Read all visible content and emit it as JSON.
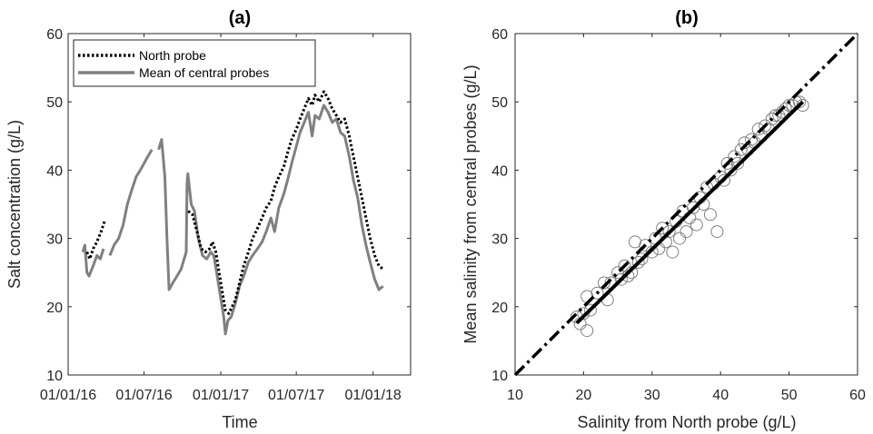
{
  "colors": {
    "north": "#000000",
    "central": "#808080",
    "scatter": "#808080",
    "fit": "#000000",
    "identity": "#000000"
  },
  "chart_data": [
    {
      "type": "line",
      "title": "(a)",
      "xlabel": "Time",
      "ylabel": "Salt concentration (g/L)",
      "ylim": [
        10,
        60
      ],
      "yticks": [
        10,
        20,
        30,
        40,
        50,
        60
      ],
      "xlim": [
        "2016-01-01",
        "2018-04-01"
      ],
      "xtick_labels": [
        "01/01/16",
        "01/07/16",
        "01/01/17",
        "01/07/17",
        "01/01/18"
      ],
      "legend": {
        "position": "top-left",
        "entries": [
          "North probe",
          "Mean of central probes"
        ]
      },
      "series": [
        {
          "name": "North probe",
          "style": "dotted",
          "segments": [
            [
              [
                "2016-02-15",
                28.0
              ],
              [
                "2016-02-22",
                27.0
              ],
              [
                "2016-03-01",
                28.5
              ],
              [
                "2016-03-10",
                29.5
              ],
              [
                "2016-03-20",
                31.0
              ],
              [
                "2016-03-28",
                32.5
              ]
            ],
            [
              [
                "2016-10-15",
                34.0
              ],
              [
                "2016-10-25",
                33.5
              ],
              [
                "2016-11-05",
                31.0
              ],
              [
                "2016-11-15",
                28.5
              ],
              [
                "2016-11-25",
                28.0
              ],
              [
                "2016-12-05",
                28.5
              ],
              [
                "2016-12-12",
                29.5
              ],
              [
                "2016-12-20",
                28.0
              ],
              [
                "2016-12-28",
                25.0
              ],
              [
                "2017-01-05",
                22.0
              ],
              [
                "2017-01-12",
                19.5
              ],
              [
                "2017-01-20",
                19.0
              ],
              [
                "2017-01-28",
                20.0
              ],
              [
                "2017-02-05",
                21.0
              ],
              [
                "2017-02-15",
                23.5
              ],
              [
                "2017-02-25",
                26.0
              ],
              [
                "2017-03-08",
                28.0
              ],
              [
                "2017-03-18",
                30.0
              ],
              [
                "2017-03-30",
                31.5
              ],
              [
                "2017-04-10",
                33.0
              ],
              [
                "2017-04-20",
                34.5
              ],
              [
                "2017-05-01",
                35.5
              ],
              [
                "2017-05-10",
                37.5
              ],
              [
                "2017-05-20",
                39.0
              ],
              [
                "2017-06-01",
                40.5
              ],
              [
                "2017-06-10",
                42.5
              ],
              [
                "2017-06-20",
                44.5
              ],
              [
                "2017-07-01",
                46.0
              ],
              [
                "2017-07-10",
                47.5
              ],
              [
                "2017-07-20",
                49.0
              ],
              [
                "2017-07-30",
                50.5
              ],
              [
                "2017-08-08",
                49.5
              ],
              [
                "2017-08-15",
                51.0
              ],
              [
                "2017-08-25",
                50.0
              ],
              [
                "2017-09-05",
                51.5
              ],
              [
                "2017-09-15",
                50.5
              ],
              [
                "2017-09-25",
                49.0
              ],
              [
                "2017-10-05",
                48.0
              ],
              [
                "2017-10-15",
                47.0
              ],
              [
                "2017-10-25",
                47.5
              ],
              [
                "2017-11-05",
                45.0
              ],
              [
                "2017-11-15",
                42.0
              ],
              [
                "2017-11-25",
                39.0
              ],
              [
                "2017-12-05",
                36.0
              ],
              [
                "2017-12-15",
                33.0
              ],
              [
                "2017-12-25",
                30.0
              ],
              [
                "2018-01-05",
                27.5
              ],
              [
                "2018-01-15",
                26.0
              ],
              [
                "2018-01-25",
                25.5
              ]
            ]
          ]
        },
        {
          "name": "Mean of central probes",
          "style": "solid",
          "segments": [
            [
              [
                "2016-02-05",
                28.0
              ],
              [
                "2016-02-10",
                29.0
              ],
              [
                "2016-02-15",
                25.0
              ],
              [
                "2016-02-20",
                24.5
              ],
              [
                "2016-03-01",
                26.0
              ],
              [
                "2016-03-10",
                27.5
              ],
              [
                "2016-03-18",
                27.0
              ],
              [
                "2016-03-26",
                28.5
              ]
            ],
            [
              [
                "2016-04-10",
                27.5
              ],
              [
                "2016-04-20",
                29.0
              ],
              [
                "2016-05-01",
                30.0
              ],
              [
                "2016-05-12",
                32.0
              ],
              [
                "2016-05-22",
                35.0
              ],
              [
                "2016-06-01",
                37.0
              ],
              [
                "2016-06-12",
                39.0
              ],
              [
                "2016-06-22",
                40.0
              ],
              [
                "2016-07-01",
                41.0
              ],
              [
                "2016-07-10",
                42.0
              ],
              [
                "2016-07-20",
                43.0
              ]
            ],
            [
              [
                "2016-08-05",
                43.0
              ],
              [
                "2016-08-12",
                44.5
              ],
              [
                "2016-08-20",
                39.0
              ],
              [
                "2016-08-25",
                30.0
              ],
              [
                "2016-08-30",
                22.5
              ],
              [
                "2016-09-08",
                23.5
              ],
              [
                "2016-09-18",
                24.5
              ],
              [
                "2016-09-28",
                25.5
              ],
              [
                "2016-10-05",
                27.0
              ],
              [
                "2016-10-10",
                28.0
              ],
              [
                "2016-10-12",
                38.0
              ],
              [
                "2016-10-14",
                39.5
              ],
              [
                "2016-10-22",
                35.0
              ],
              [
                "2016-10-30",
                34.0
              ],
              [
                "2016-11-08",
                30.0
              ],
              [
                "2016-11-18",
                27.5
              ],
              [
                "2016-11-28",
                27.0
              ],
              [
                "2016-12-08",
                28.0
              ],
              [
                "2016-12-15",
                27.5
              ],
              [
                "2016-12-22",
                25.0
              ],
              [
                "2016-12-30",
                22.0
              ],
              [
                "2017-01-08",
                18.5
              ],
              [
                "2017-01-12",
                16.0
              ],
              [
                "2017-01-18",
                18.0
              ],
              [
                "2017-01-26",
                18.5
              ],
              [
                "2017-02-05",
                20.5
              ],
              [
                "2017-02-15",
                23.0
              ],
              [
                "2017-02-25",
                24.5
              ],
              [
                "2017-03-08",
                26.5
              ],
              [
                "2017-03-18",
                27.5
              ],
              [
                "2017-03-30",
                28.5
              ],
              [
                "2017-04-10",
                29.5
              ],
              [
                "2017-04-20",
                31.0
              ],
              [
                "2017-05-01",
                33.0
              ],
              [
                "2017-05-10",
                31.0
              ],
              [
                "2017-05-20",
                34.5
              ],
              [
                "2017-06-01",
                36.5
              ],
              [
                "2017-06-10",
                38.5
              ],
              [
                "2017-06-20",
                41.0
              ],
              [
                "2017-07-01",
                43.5
              ],
              [
                "2017-07-10",
                45.5
              ],
              [
                "2017-07-20",
                47.0
              ],
              [
                "2017-07-30",
                48.5
              ],
              [
                "2017-08-08",
                45.0
              ],
              [
                "2017-08-15",
                48.0
              ],
              [
                "2017-08-25",
                47.5
              ],
              [
                "2017-09-05",
                49.5
              ],
              [
                "2017-09-15",
                48.5
              ],
              [
                "2017-09-25",
                47.0
              ],
              [
                "2017-10-05",
                47.5
              ],
              [
                "2017-10-15",
                45.5
              ],
              [
                "2017-10-25",
                45.0
              ],
              [
                "2017-11-05",
                42.0
              ],
              [
                "2017-11-15",
                38.5
              ],
              [
                "2017-11-25",
                36.0
              ],
              [
                "2017-12-05",
                32.0
              ],
              [
                "2017-12-15",
                29.0
              ],
              [
                "2017-12-25",
                26.5
              ],
              [
                "2018-01-05",
                24.0
              ],
              [
                "2018-01-15",
                22.5
              ],
              [
                "2018-01-25",
                23.0
              ]
            ]
          ]
        }
      ]
    },
    {
      "type": "scatter",
      "title": "(b)",
      "xlabel": "Salinity from North probe (g/L)",
      "ylabel": "Mean salinity from central probes (g/L)",
      "xlim": [
        10,
        60
      ],
      "ylim": [
        10,
        60
      ],
      "xticks": [
        10,
        20,
        30,
        40,
        50,
        60
      ],
      "yticks": [
        10,
        20,
        30,
        40,
        50,
        60
      ],
      "points": [
        [
          19,
          18.5
        ],
        [
          19.5,
          17.5
        ],
        [
          20,
          19
        ],
        [
          20.5,
          16.5
        ],
        [
          20.5,
          21.5
        ],
        [
          21,
          19.5
        ],
        [
          22,
          22
        ],
        [
          23,
          23.5
        ],
        [
          23.5,
          21
        ],
        [
          24,
          23.5
        ],
        [
          25,
          25
        ],
        [
          25.5,
          24
        ],
        [
          26,
          26
        ],
        [
          26.5,
          24.5
        ],
        [
          27,
          25
        ],
        [
          27.5,
          29.5
        ],
        [
          28,
          26.5
        ],
        [
          28.5,
          27
        ],
        [
          29,
          29
        ],
        [
          30,
          28
        ],
        [
          30.5,
          30
        ],
        [
          31,
          28.5
        ],
        [
          31.5,
          31.5
        ],
        [
          32,
          29.5
        ],
        [
          32.5,
          31
        ],
        [
          33,
          28
        ],
        [
          33.5,
          32.5
        ],
        [
          34,
          30
        ],
        [
          34.5,
          34
        ],
        [
          35,
          31
        ],
        [
          35.5,
          33
        ],
        [
          36,
          34.5
        ],
        [
          36.5,
          32
        ],
        [
          37,
          36
        ],
        [
          37.5,
          35
        ],
        [
          38,
          37.5
        ],
        [
          38.5,
          33.5
        ],
        [
          39,
          38
        ],
        [
          39.5,
          31
        ],
        [
          40,
          39
        ],
        [
          40.5,
          38.5
        ],
        [
          41,
          41
        ],
        [
          41.5,
          40
        ],
        [
          42,
          42
        ],
        [
          42.5,
          41
        ],
        [
          43,
          43
        ],
        [
          43.5,
          44
        ],
        [
          44,
          43
        ],
        [
          44.5,
          44.5
        ],
        [
          45,
          44
        ],
        [
          45.5,
          46
        ],
        [
          46,
          45
        ],
        [
          46.5,
          46.5
        ],
        [
          47,
          46
        ],
        [
          47.5,
          47.5
        ],
        [
          48,
          48
        ],
        [
          48.5,
          48
        ],
        [
          49,
          48.5
        ],
        [
          49.5,
          49
        ],
        [
          50,
          49.5
        ],
        [
          50.5,
          49.5
        ],
        [
          51,
          50
        ],
        [
          51.5,
          50
        ],
        [
          52,
          49.5
        ]
      ],
      "fit_line": {
        "x": [
          19,
          52
        ],
        "y": [
          17.6,
          50.0
        ]
      },
      "identity_line": {
        "x": [
          10,
          60
        ],
        "y": [
          10,
          60
        ]
      }
    }
  ]
}
